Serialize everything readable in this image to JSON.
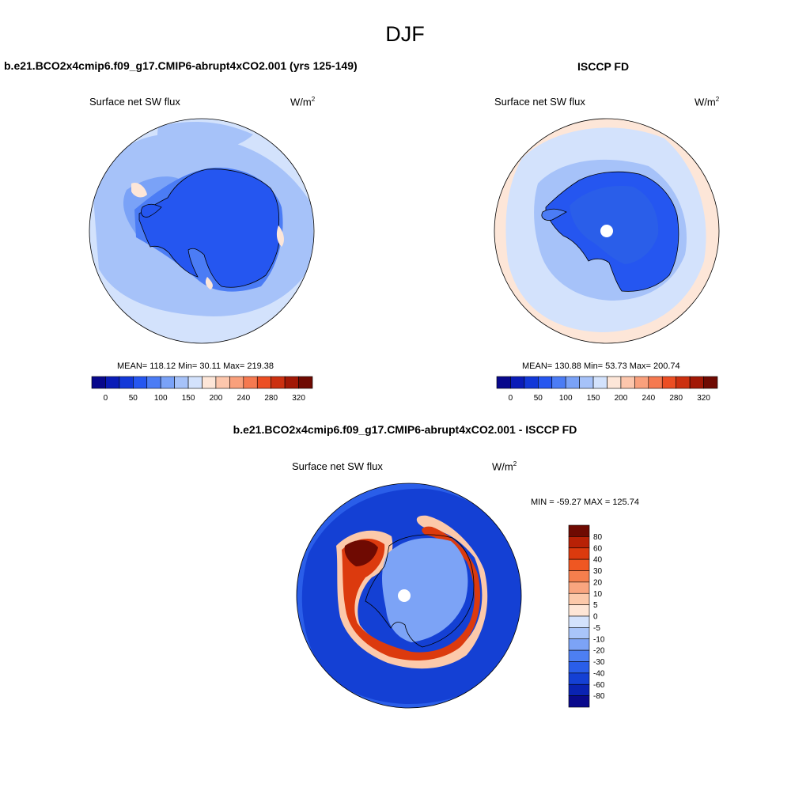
{
  "title": "DJF",
  "colors": {
    "seq": [
      "#08088c",
      "#0a1cb8",
      "#1238d8",
      "#2556f0",
      "#4b7cf5",
      "#7aa2f7",
      "#a6c2f9",
      "#d3e2fc",
      "#fde6d8",
      "#fcc6ac",
      "#f9a07c",
      "#f57950",
      "#ec4e23",
      "#cc3010",
      "#a21806",
      "#6f0a02"
    ],
    "diff": [
      "#6f0a02",
      "#b82106",
      "#dc3a0e",
      "#ef5722",
      "#f57f4d",
      "#f9a57f",
      "#fcc9aa",
      "#fee6d6",
      "#d3e2fc",
      "#a9c5fa",
      "#7ca3f6",
      "#4d7ff2",
      "#2a5ee9",
      "#1440d4",
      "#0a23b3",
      "#0a0a8c"
    ]
  },
  "panels": [
    {
      "title": "b.e21.BCO2x4cmip6.f09_g17.CMIP6-abrupt4xCO2.001 (yrs 125-149)",
      "variable": "Surface net SW flux",
      "units": "W/m",
      "units_sup": "2",
      "stats": "MEAN= 118.12  Min=  30.11  Max= 219.38",
      "colorbar_ticks": [
        "0",
        "50",
        "100",
        "150",
        "200",
        "240",
        "280",
        "320"
      ]
    },
    {
      "title": "ISCCP FD",
      "variable": "Surface net SW flux",
      "units": "W/m",
      "units_sup": "2",
      "stats": "MEAN= 130.88  Min=  53.73  Max= 200.74",
      "colorbar_ticks": [
        "0",
        "50",
        "100",
        "150",
        "200",
        "240",
        "280",
        "320"
      ]
    },
    {
      "title": "b.e21.BCO2x4cmip6.f09_g17.CMIP6-abrupt4xCO2.001 - ISCCP FD",
      "variable": "Surface net SW flux",
      "units": "W/m",
      "units_sup": "2",
      "stats": "MIN = -59.27 MAX = 125.74",
      "colorbar_ticks": [
        "80",
        "60",
        "40",
        "30",
        "20",
        "10",
        "5",
        "0",
        "-5",
        "-10",
        "-20",
        "-30",
        "-40",
        "-60",
        "-80"
      ]
    }
  ],
  "chart_data": [
    {
      "type": "heatmap",
      "projection": "south polar stereographic",
      "title": "b.e21.BCO2x4cmip6.f09_g17.CMIP6-abrupt4xCO2.001 (yrs 125-149)",
      "variable": "Surface net SW flux",
      "units": "W/m2",
      "mean": 118.12,
      "min": 30.11,
      "max": 219.38,
      "levels": [
        0,
        25,
        50,
        75,
        100,
        125,
        150,
        175,
        200,
        220,
        240,
        260,
        280,
        300,
        320
      ]
    },
    {
      "type": "heatmap",
      "projection": "south polar stereographic",
      "title": "ISCCP FD",
      "variable": "Surface net SW flux",
      "units": "W/m2",
      "mean": 130.88,
      "min": 53.73,
      "max": 200.74,
      "levels": [
        0,
        25,
        50,
        75,
        100,
        125,
        150,
        175,
        200,
        220,
        240,
        260,
        280,
        300,
        320
      ]
    },
    {
      "type": "heatmap",
      "projection": "south polar stereographic",
      "title": "b.e21.BCO2x4cmip6.f09_g17.CMIP6-abrupt4xCO2.001 - ISCCP FD",
      "variable": "Surface net SW flux",
      "units": "W/m2",
      "min": -59.27,
      "max": 125.74,
      "levels": [
        80,
        60,
        40,
        30,
        20,
        10,
        5,
        0,
        -5,
        -10,
        -20,
        -30,
        -40,
        -60,
        -80
      ]
    }
  ]
}
